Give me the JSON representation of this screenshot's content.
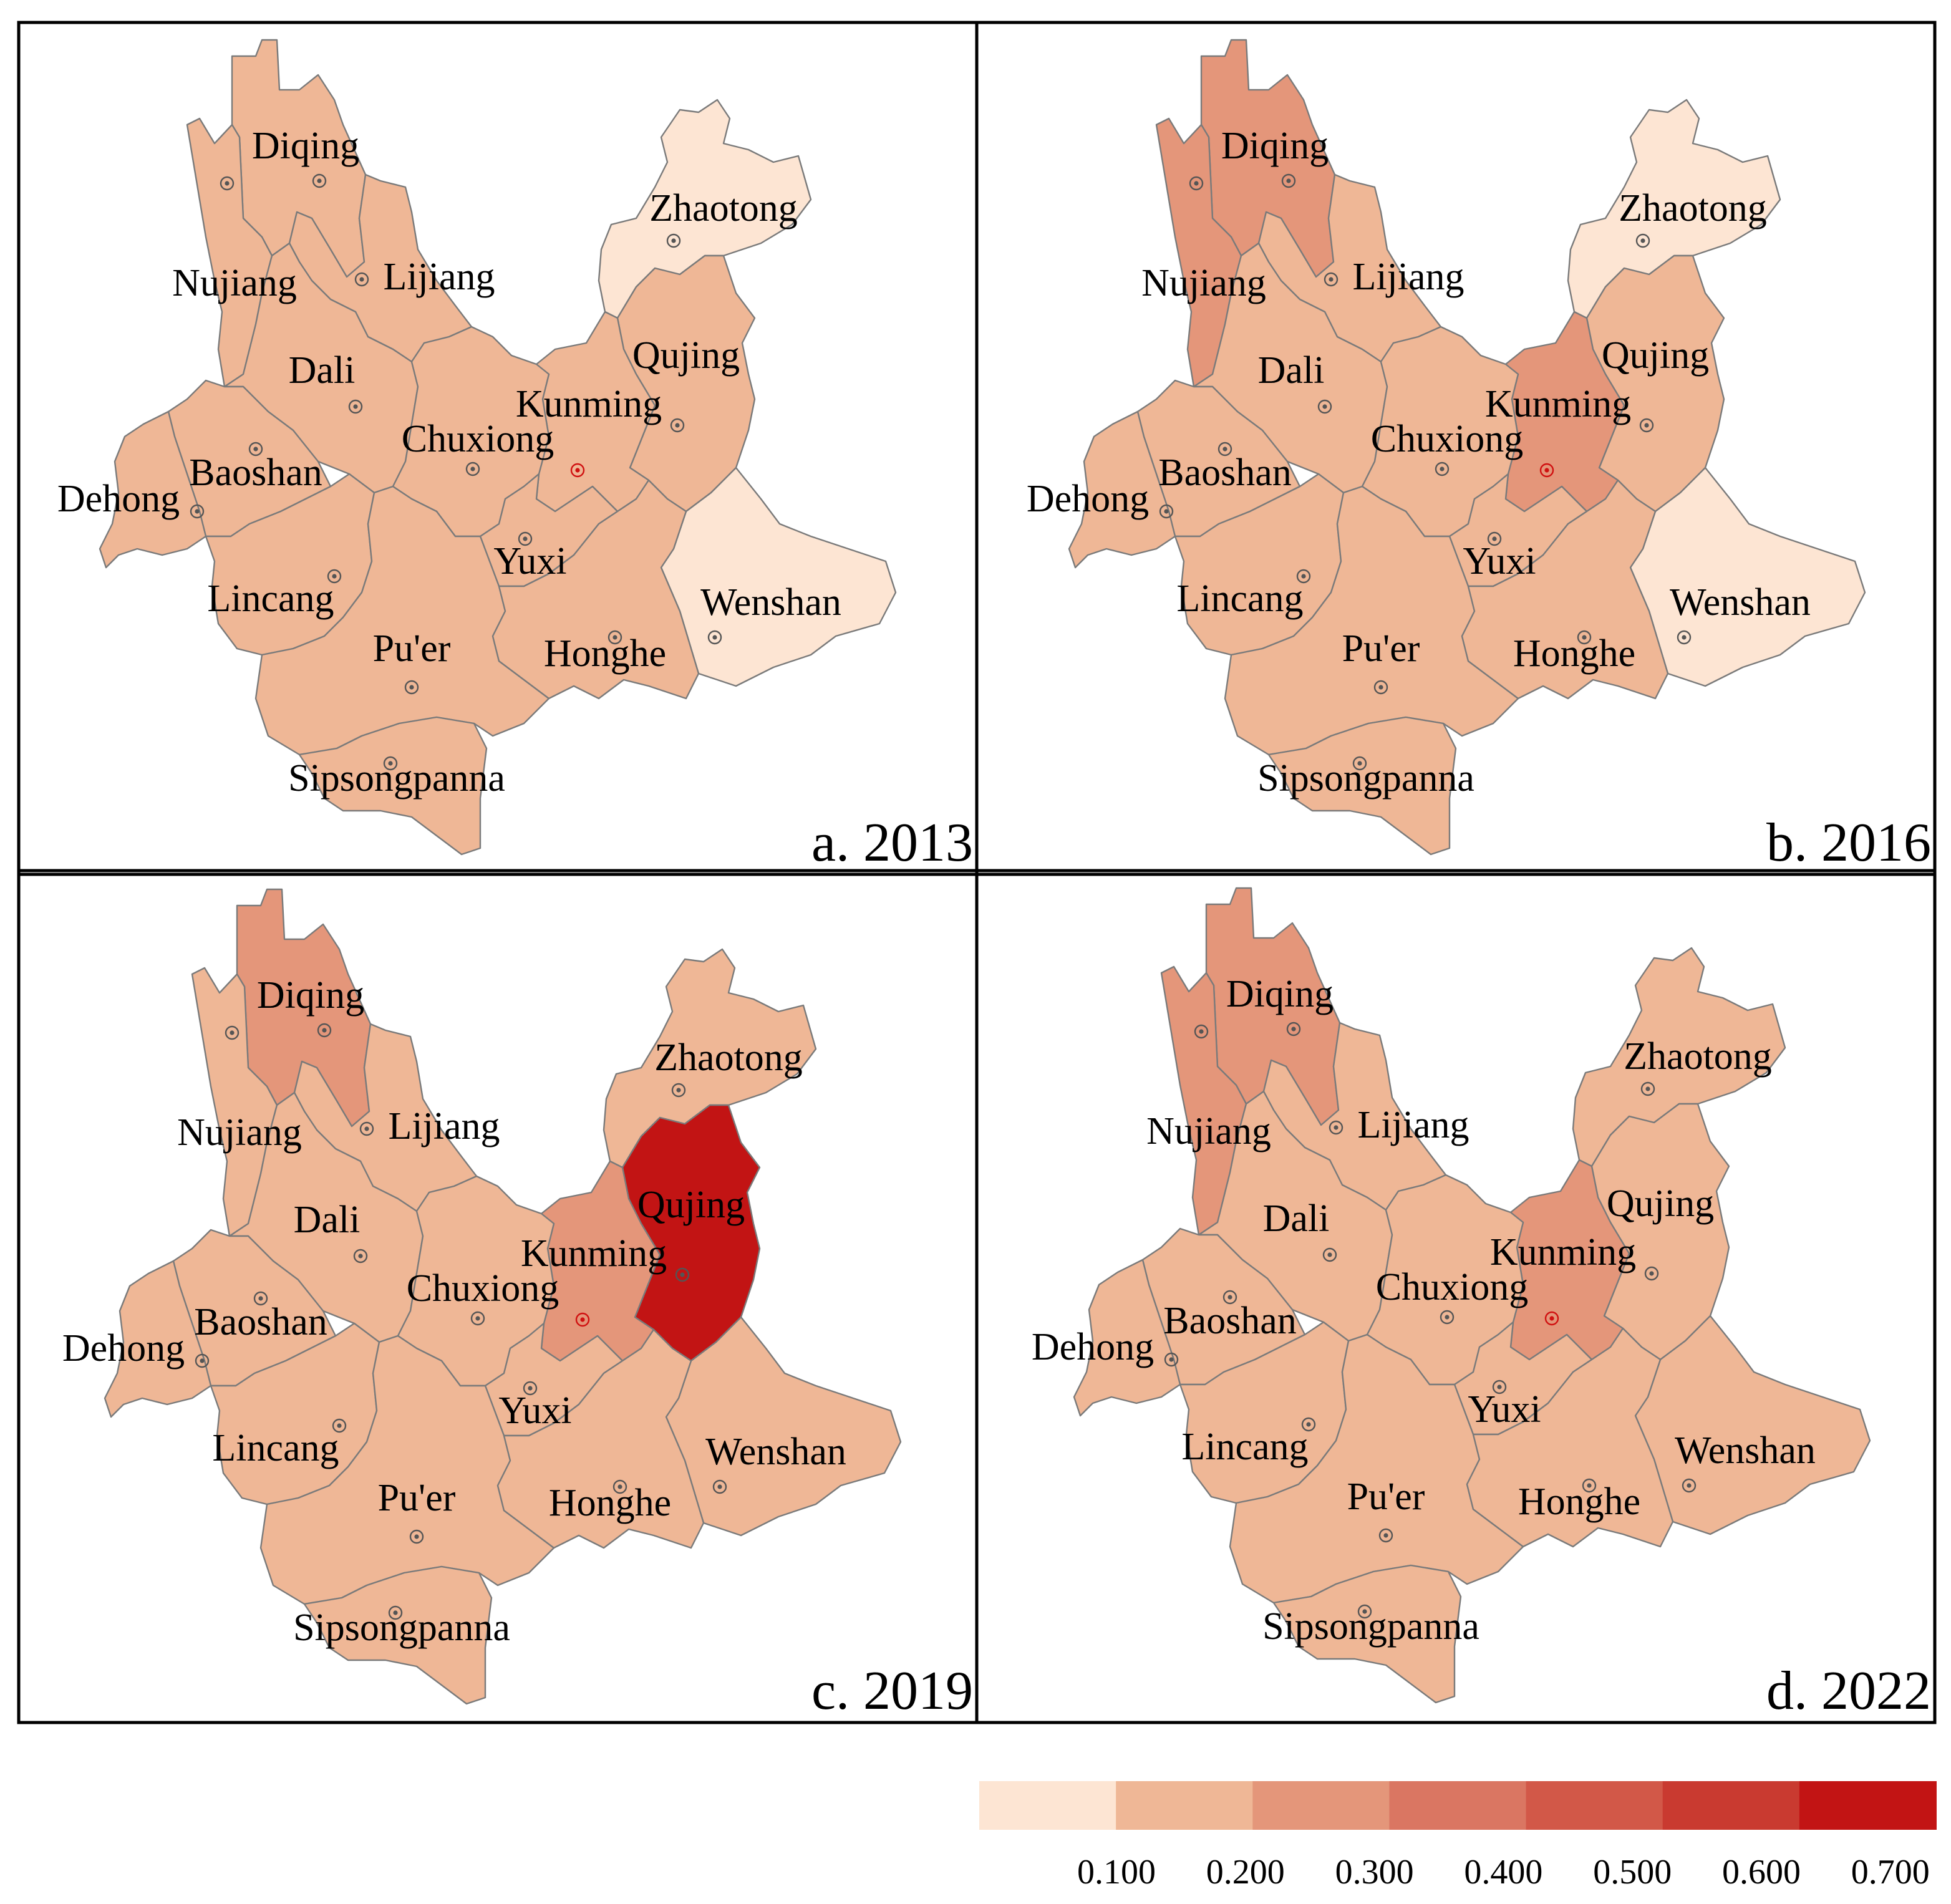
{
  "panels": [
    {
      "label": "a. 2013",
      "regions": [
        {
          "name": "Diqing",
          "color": "#efb796"
        },
        {
          "name": "Nujiang",
          "color": "#efb796"
        },
        {
          "name": "Lijiang",
          "color": "#efb796"
        },
        {
          "name": "Zhaotong",
          "color": "#fde5d3"
        },
        {
          "name": "Qujing",
          "color": "#efb796"
        },
        {
          "name": "Dali",
          "color": "#efb796"
        },
        {
          "name": "Kunming",
          "color": "#efb796"
        },
        {
          "name": "Chuxiong",
          "color": "#efb796"
        },
        {
          "name": "Baoshan",
          "color": "#efb796"
        },
        {
          "name": "Dehong",
          "color": "#efb796"
        },
        {
          "name": "Yuxi",
          "color": "#efb796"
        },
        {
          "name": "Wenshan",
          "color": "#fde5d3"
        },
        {
          "name": "Lincang",
          "color": "#efb796"
        },
        {
          "name": "Pu'er",
          "color": "#efb796"
        },
        {
          "name": "Honghe",
          "color": "#efb796"
        },
        {
          "name": "Sipsongpanna",
          "color": "#efb796"
        }
      ]
    },
    {
      "label": "b. 2016",
      "regions": [
        {
          "name": "Diqing",
          "color": "#e4967a"
        },
        {
          "name": "Nujiang",
          "color": "#e4967a"
        },
        {
          "name": "Lijiang",
          "color": "#efb796"
        },
        {
          "name": "Zhaotong",
          "color": "#fde5d3"
        },
        {
          "name": "Qujing",
          "color": "#efb796"
        },
        {
          "name": "Dali",
          "color": "#efb796"
        },
        {
          "name": "Kunming",
          "color": "#e4967a"
        },
        {
          "name": "Chuxiong",
          "color": "#efb796"
        },
        {
          "name": "Baoshan",
          "color": "#efb796"
        },
        {
          "name": "Dehong",
          "color": "#efb796"
        },
        {
          "name": "Yuxi",
          "color": "#efb796"
        },
        {
          "name": "Wenshan",
          "color": "#fde5d3"
        },
        {
          "name": "Lincang",
          "color": "#efb796"
        },
        {
          "name": "Pu'er",
          "color": "#efb796"
        },
        {
          "name": "Honghe",
          "color": "#efb796"
        },
        {
          "name": "Sipsongpanna",
          "color": "#efb796"
        }
      ]
    },
    {
      "label": "c. 2019",
      "regions": [
        {
          "name": "Diqing",
          "color": "#e4967a"
        },
        {
          "name": "Nujiang",
          "color": "#efb796"
        },
        {
          "name": "Lijiang",
          "color": "#efb796"
        },
        {
          "name": "Zhaotong",
          "color": "#efb796"
        },
        {
          "name": "Qujing",
          "color": "#c21414"
        },
        {
          "name": "Dali",
          "color": "#efb796"
        },
        {
          "name": "Kunming",
          "color": "#e4967a"
        },
        {
          "name": "Chuxiong",
          "color": "#efb796"
        },
        {
          "name": "Baoshan",
          "color": "#efb796"
        },
        {
          "name": "Dehong",
          "color": "#efb796"
        },
        {
          "name": "Yuxi",
          "color": "#efb796"
        },
        {
          "name": "Wenshan",
          "color": "#efb796"
        },
        {
          "name": "Lincang",
          "color": "#efb796"
        },
        {
          "name": "Pu'er",
          "color": "#efb796"
        },
        {
          "name": "Honghe",
          "color": "#efb796"
        },
        {
          "name": "Sipsongpanna",
          "color": "#efb796"
        }
      ]
    },
    {
      "label": "d. 2022",
      "regions": [
        {
          "name": "Diqing",
          "color": "#e4967a"
        },
        {
          "name": "Nujiang",
          "color": "#e4967a"
        },
        {
          "name": "Lijiang",
          "color": "#efb796"
        },
        {
          "name": "Zhaotong",
          "color": "#efb796"
        },
        {
          "name": "Qujing",
          "color": "#efb796"
        },
        {
          "name": "Dali",
          "color": "#efb796"
        },
        {
          "name": "Kunming",
          "color": "#e4967a"
        },
        {
          "name": "Chuxiong",
          "color": "#efb796"
        },
        {
          "name": "Baoshan",
          "color": "#efb796"
        },
        {
          "name": "Dehong",
          "color": "#efb796"
        },
        {
          "name": "Yuxi",
          "color": "#efb796"
        },
        {
          "name": "Wenshan",
          "color": "#efb796"
        },
        {
          "name": "Lincang",
          "color": "#efb796"
        },
        {
          "name": "Pu'er",
          "color": "#efb796"
        },
        {
          "name": "Honghe",
          "color": "#efb796"
        },
        {
          "name": "Sipsongpanna",
          "color": "#efb796"
        }
      ]
    }
  ],
  "legend": {
    "colors": [
      "#fde5d3",
      "#efb796",
      "#e4967a",
      "#da7662",
      "#d25848",
      "#c93a30",
      "#c21414"
    ],
    "ticks": [
      {
        "value": 0.1,
        "label": "0.100"
      },
      {
        "value": 0.2,
        "label": "0.200"
      },
      {
        "value": 0.3,
        "label": "0.300"
      },
      {
        "value": 0.4,
        "label": "0.400"
      },
      {
        "value": 0.5,
        "label": "0.500"
      },
      {
        "value": 0.6,
        "label": "0.600"
      },
      {
        "value": 0.7,
        "label": "0.700"
      }
    ]
  }
}
